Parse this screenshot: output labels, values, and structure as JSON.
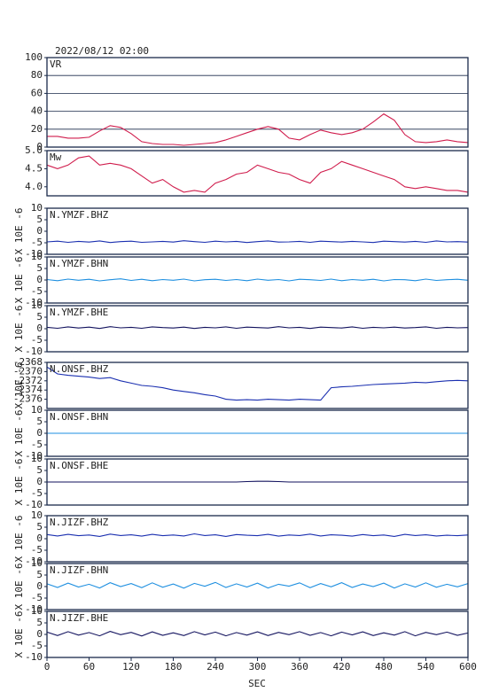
{
  "chart_data": {
    "type": "line",
    "title": "2022/08/12 02:00",
    "xlabel": "SEC",
    "xlim": [
      0,
      600
    ],
    "xticks": [
      0,
      60,
      120,
      180,
      240,
      300,
      360,
      420,
      480,
      540,
      600
    ],
    "x": [
      0,
      15,
      30,
      45,
      60,
      75,
      90,
      105,
      120,
      135,
      150,
      165,
      180,
      195,
      210,
      225,
      240,
      255,
      270,
      285,
      300,
      315,
      330,
      345,
      360,
      375,
      390,
      405,
      420,
      435,
      450,
      465,
      480,
      495,
      510,
      525,
      540,
      555,
      570,
      585,
      600
    ],
    "panels": [
      {
        "name": "VR",
        "color": "#d01c4c",
        "grid": true,
        "ylim": [
          0,
          100
        ],
        "yticks": [
          0,
          20,
          40,
          60,
          80,
          100
        ],
        "values": [
          12,
          12,
          10,
          10,
          11,
          18,
          24,
          22,
          15,
          6,
          4,
          3,
          3,
          2,
          3,
          4,
          5,
          8,
          12,
          16,
          20,
          23,
          20,
          10,
          8,
          14,
          19,
          16,
          14,
          16,
          20,
          28,
          37,
          30,
          14,
          6,
          5,
          6,
          8,
          6,
          5
        ]
      },
      {
        "name": "Mw",
        "color": "#d01c4c",
        "grid": false,
        "ylim": [
          3.75,
          5
        ],
        "yticks": [
          {
            "value": 4,
            "label": "4.0"
          },
          4.5,
          {
            "value": 5,
            "label": "5.0"
          }
        ],
        "values": [
          4.6,
          4.5,
          4.6,
          4.8,
          4.85,
          4.6,
          4.65,
          4.6,
          4.5,
          4.3,
          4.1,
          4.2,
          4.0,
          3.85,
          3.9,
          3.85,
          4.1,
          4.2,
          4.35,
          4.4,
          4.6,
          4.5,
          4.4,
          4.35,
          4.2,
          4.1,
          4.4,
          4.5,
          4.7,
          4.6,
          4.5,
          4.4,
          4.3,
          4.2,
          4.0,
          3.95,
          4.0,
          3.95,
          3.9,
          3.9,
          3.85
        ]
      },
      {
        "name": "N.YMZF.BHZ",
        "ylabel": "X 10E -6",
        "color": "#1a2fb0",
        "ylim": [
          -10,
          10
        ],
        "yticks": [
          -10,
          -5,
          0,
          5,
          10
        ],
        "values": [
          -4.6,
          -4.3,
          -4.8,
          -4.4,
          -4.7,
          -4.2,
          -4.9,
          -4.5,
          -4.3,
          -4.8,
          -4.6,
          -4.4,
          -4.7,
          -4.1,
          -4.5,
          -4.8,
          -4.3,
          -4.6,
          -4.4,
          -4.9,
          -4.5,
          -4.2,
          -4.7,
          -4.6,
          -4.4,
          -4.8,
          -4.3,
          -4.5,
          -4.7,
          -4.4,
          -4.6,
          -4.9,
          -4.3,
          -4.5,
          -4.7,
          -4.4,
          -4.8,
          -4.2,
          -4.6,
          -4.5,
          -4.7
        ]
      },
      {
        "name": "N.YMZF.BHN",
        "ylabel": "X 10E -6",
        "color": "#1e8fe0",
        "ylim": [
          -10,
          10
        ],
        "yticks": [
          -10,
          -5,
          0,
          5,
          10
        ],
        "values": [
          0.2,
          -0.3,
          0.4,
          -0.1,
          0.3,
          -0.4,
          0.1,
          0.5,
          -0.2,
          0.3,
          -0.3,
          0.2,
          -0.1,
          0.4,
          -0.4,
          0.1,
          0.3,
          -0.2,
          0.2,
          -0.3,
          0.4,
          -0.1,
          0.2,
          -0.4,
          0.3,
          0.1,
          -0.2,
          0.4,
          -0.3,
          0.2,
          -0.1,
          0.3,
          -0.4,
          0.2,
          0.1,
          -0.3,
          0.4,
          -0.2,
          0.1,
          0.3,
          -0.1
        ]
      },
      {
        "name": "N.YMZF.BHE",
        "ylabel": "X 10E -6",
        "color": "#12125e",
        "ylim": [
          -10,
          10
        ],
        "yticks": [
          -10,
          -5,
          0,
          5,
          10
        ],
        "values": [
          0.6,
          0.2,
          0.8,
          0.3,
          0.7,
          0.1,
          0.9,
          0.4,
          0.6,
          0.2,
          0.8,
          0.5,
          0.3,
          0.7,
          0.1,
          0.6,
          0.4,
          0.8,
          0.2,
          0.7,
          0.5,
          0.3,
          0.9,
          0.4,
          0.6,
          0.1,
          0.7,
          0.5,
          0.3,
          0.8,
          0.2,
          0.6,
          0.4,
          0.7,
          0.3,
          0.5,
          0.8,
          0.2,
          0.6,
          0.4,
          0.5
        ]
      },
      {
        "name": "N.ONSF.BHZ",
        "ylabel": "X 10E -6",
        "color": "#1a2fb0",
        "ylim": [
          -2378,
          -2368
        ],
        "yticks": [
          -2376,
          -2374,
          -2372,
          -2370,
          -2368
        ],
        "values": [
          -2369,
          -2370.5,
          -2370.8,
          -2371,
          -2371.2,
          -2371.5,
          -2371.3,
          -2372,
          -2372.5,
          -2373,
          -2373.2,
          -2373.5,
          -2374,
          -2374.3,
          -2374.6,
          -2375,
          -2375.3,
          -2376,
          -2376.2,
          -2376.1,
          -2376.2,
          -2376,
          -2376.1,
          -2376.2,
          -2376,
          -2376.1,
          -2376.2,
          -2373.5,
          -2373.3,
          -2373.2,
          -2373,
          -2372.8,
          -2372.7,
          -2372.6,
          -2372.5,
          -2372.3,
          -2372.4,
          -2372.2,
          -2372,
          -2371.9,
          -2372
        ]
      },
      {
        "name": "N.ONSF.BHN",
        "ylabel": "X 10E -6",
        "color": "#1e8fe0",
        "ylim": [
          -10,
          10
        ],
        "yticks": [
          -10,
          -5,
          0,
          5,
          10
        ],
        "values": [
          0,
          0,
          0,
          0,
          0,
          0,
          0,
          0,
          0,
          0,
          0,
          0,
          0,
          0,
          0,
          0,
          0,
          0,
          0,
          0,
          0,
          0,
          0,
          0,
          0,
          0,
          0,
          0,
          0,
          0,
          0,
          0,
          0,
          0,
          0,
          0,
          0,
          0,
          0,
          0,
          0
        ]
      },
      {
        "name": "N.ONSF.BHE",
        "ylabel": "X 10E -6",
        "color": "#12125e",
        "ylim": [
          -10,
          10
        ],
        "yticks": [
          -10,
          -5,
          0,
          5,
          10
        ],
        "values": [
          0,
          0,
          0,
          0,
          0,
          0,
          0,
          0,
          0,
          0,
          0,
          0,
          0,
          0,
          0,
          0,
          0,
          0,
          0,
          0.2,
          0.3,
          0.3,
          0.2,
          0,
          0,
          0,
          0,
          0,
          0,
          0,
          0,
          0,
          0,
          0,
          0,
          0,
          0,
          0,
          0,
          0,
          0
        ]
      },
      {
        "name": "N.JIZF.BHZ",
        "ylabel": "X 10E -6",
        "color": "#1a2fb0",
        "ylim": [
          -10,
          10
        ],
        "yticks": [
          -10,
          -5,
          0,
          5,
          10
        ],
        "values": [
          1.8,
          1.2,
          1.9,
          1.3,
          1.6,
          1.0,
          2.0,
          1.4,
          1.7,
          1.1,
          1.9,
          1.3,
          1.6,
          1.2,
          2.1,
          1.4,
          1.7,
          1.0,
          1.8,
          1.5,
          1.3,
          1.9,
          1.1,
          1.6,
          1.4,
          2.0,
          1.2,
          1.7,
          1.5,
          1.1,
          1.8,
          1.3,
          1.6,
          1.0,
          1.9,
          1.4,
          1.7,
          1.2,
          1.5,
          1.3,
          1.6
        ]
      },
      {
        "name": "N.JIZF.BHN",
        "ylabel": "X 10E -6",
        "color": "#1e8fe0",
        "ylim": [
          -10,
          10
        ],
        "yticks": [
          -10,
          -5,
          0,
          5,
          10
        ],
        "values": [
          1.2,
          -0.4,
          1.5,
          -0.2,
          1.0,
          -0.6,
          1.7,
          0,
          1.3,
          -0.5,
          1.6,
          -0.3,
          1.1,
          -0.7,
          1.4,
          0.1,
          1.8,
          -0.4,
          1.2,
          -0.2,
          1.5,
          -0.6,
          1.0,
          0.2,
          1.6,
          -0.5,
          1.3,
          -0.1,
          1.7,
          -0.4,
          1.1,
          0,
          1.5,
          -0.6,
          1.2,
          -0.2,
          1.6,
          -0.3,
          1.0,
          -0.1,
          1.3
        ]
      },
      {
        "name": "N.JIZF.BHE",
        "ylabel": "X 10E -6",
        "color": "#12125e",
        "ylim": [
          -10,
          10
        ],
        "yticks": [
          -10,
          -5,
          0,
          5,
          10
        ],
        "values": [
          1.0,
          -0.5,
          1.2,
          -0.3,
          0.8,
          -0.6,
          1.3,
          -0.1,
          0.9,
          -0.7,
          1.1,
          -0.4,
          0.7,
          -0.5,
          1.2,
          -0.2,
          1.0,
          -0.6,
          0.8,
          -0.3,
          1.1,
          -0.5,
          0.9,
          -0.1,
          1.2,
          -0.4,
          0.8,
          -0.6,
          1.0,
          -0.2,
          1.1,
          -0.5,
          0.7,
          -0.3,
          1.2,
          -0.6,
          0.9,
          -0.1,
          1.0,
          -0.4,
          0.6
        ]
      }
    ]
  }
}
